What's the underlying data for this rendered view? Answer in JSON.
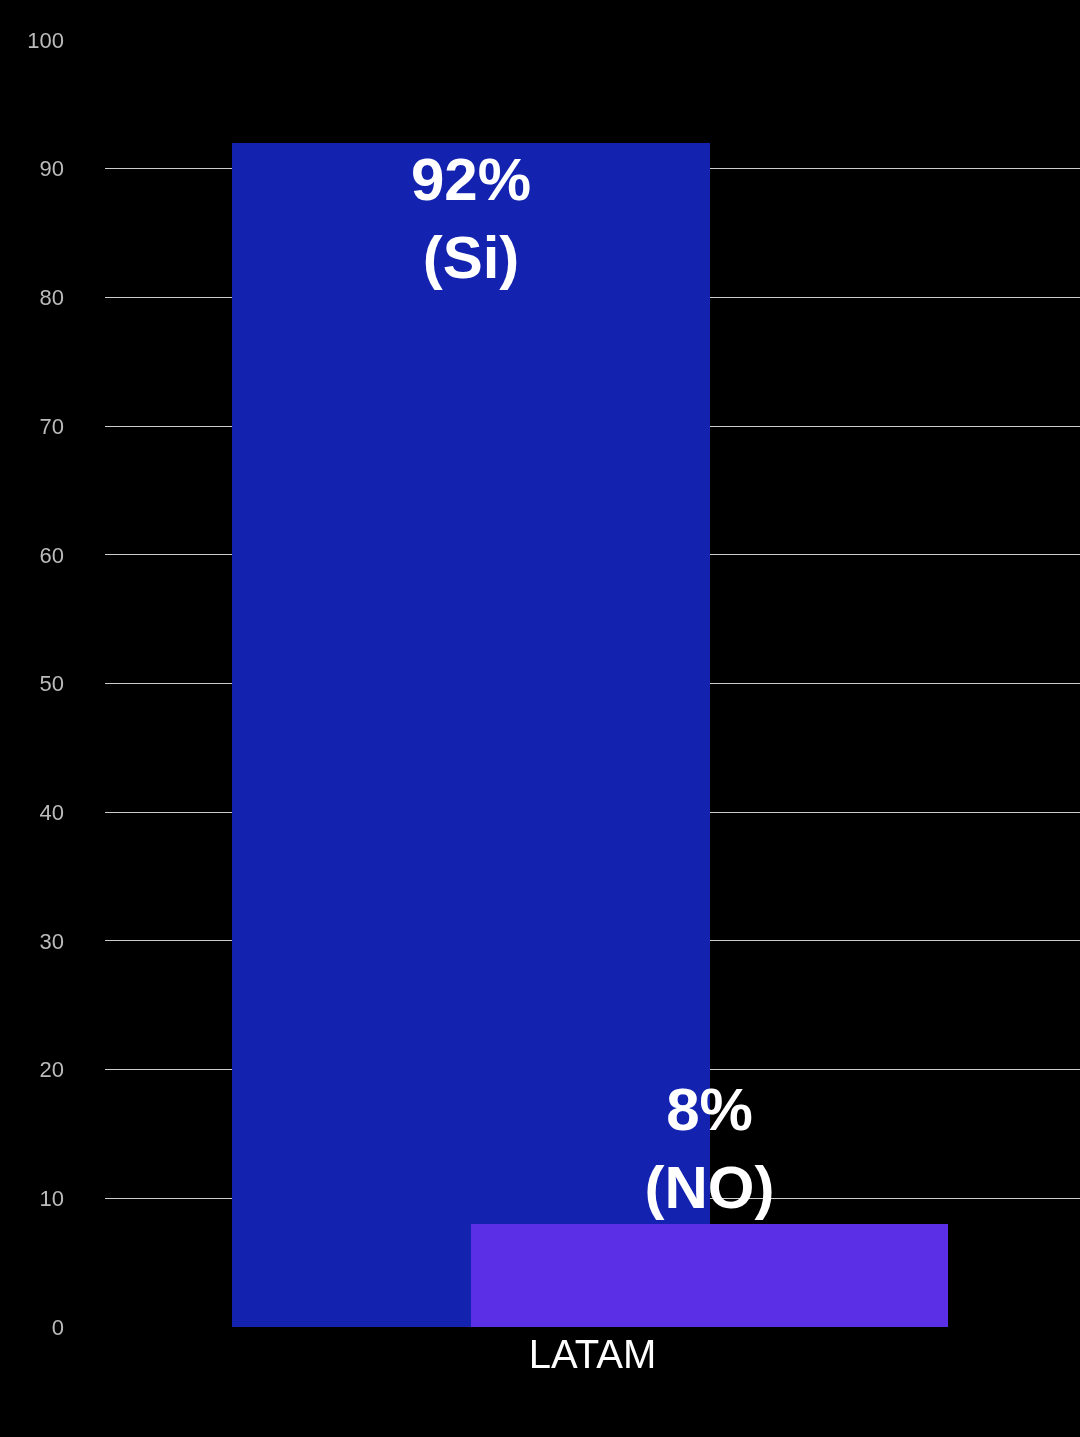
{
  "chart_data": {
    "type": "bar",
    "categories": [
      "LATAM"
    ],
    "series": [
      {
        "color": "#1323b0",
        "values": [
          92
        ],
        "value_labels": [
          "92%\n(Si)"
        ]
      },
      {
        "color": "#5a2fe6",
        "values": [
          8
        ],
        "value_labels": [
          "8%\n(NO)"
        ]
      }
    ],
    "ylim": [
      0,
      100
    ],
    "yticks": [
      0,
      10,
      20,
      30,
      40,
      50,
      60,
      70,
      80,
      90,
      100
    ],
    "grid": "y"
  }
}
